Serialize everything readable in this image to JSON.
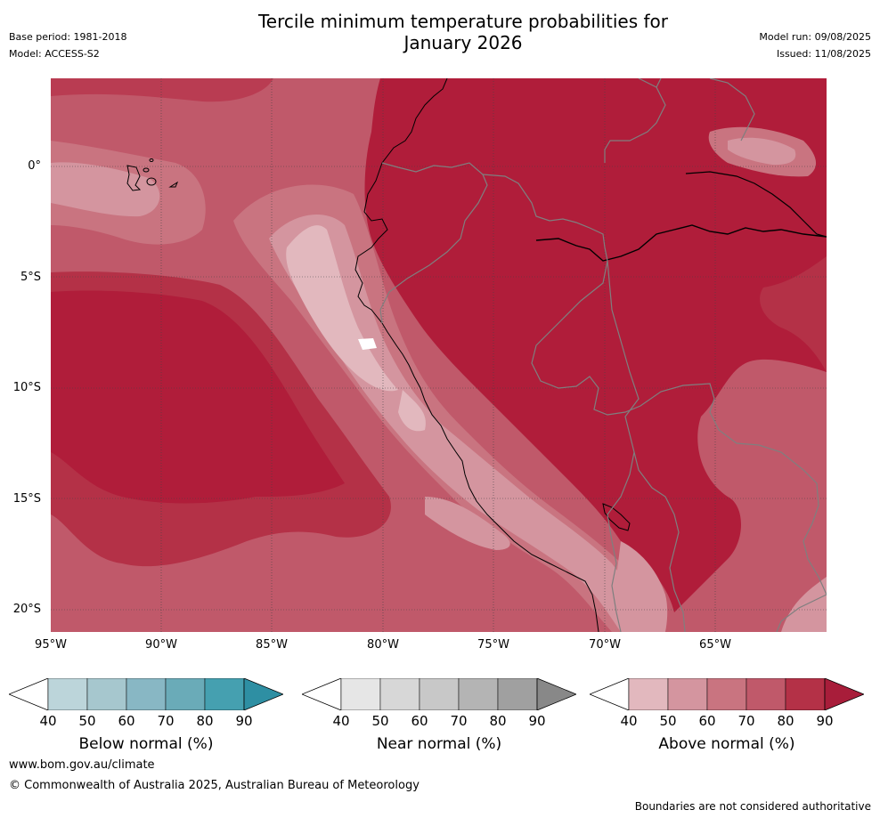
{
  "title_line1": "Tercile minimum temperature probabilities for",
  "title_line2": "January 2026",
  "base_period": "Base period: 1981-2018",
  "model": "Model: ACCESS-S2",
  "model_run": "Model run: 09/08/2025",
  "issued": "Issued: 11/08/2025",
  "lat_labels": [
    "0°",
    "5°S",
    "10°S",
    "15°S",
    "20°S"
  ],
  "lon_labels": [
    "95°W",
    "90°W",
    "85°W",
    "80°W",
    "75°W",
    "70°W",
    "65°W"
  ],
  "colorbars": [
    {
      "label": "Below normal (%)",
      "ticks": [
        "40",
        "50",
        "60",
        "70",
        "80",
        "90"
      ],
      "colors": [
        "#ffffff",
        "#bcd5da",
        "#a6c7ce",
        "#88b7c4",
        "#6aabb8",
        "#45a0b0",
        "#2e8fa3"
      ]
    },
    {
      "label": "Near normal (%)",
      "ticks": [
        "40",
        "50",
        "60",
        "70",
        "80",
        "90"
      ],
      "colors": [
        "#ffffff",
        "#e6e6e6",
        "#d7d7d7",
        "#c8c8c8",
        "#b4b4b4",
        "#a0a0a0",
        "#888888"
      ]
    },
    {
      "label": "Above normal (%)",
      "ticks": [
        "40",
        "50",
        "60",
        "70",
        "80",
        "90"
      ],
      "colors": [
        "#ffffff",
        "#e2b8be",
        "#d4959f",
        "#c97480",
        "#c0596a",
        "#b43147",
        "#a81d3a"
      ]
    }
  ],
  "website": "www.bom.gov.au/climate",
  "copyright": "© Commonwealth of Australia 2025, Australian Bureau of Meteorology",
  "disclaimer": "Boundaries are not considered authoritative",
  "map_colors": {
    "c40_50": "#e2b8be",
    "c50_60": "#d4959f",
    "c60_70": "#c97480",
    "c70_80": "#c0596a",
    "c80_90": "#b93c52",
    "c90": "#b01d3a"
  }
}
